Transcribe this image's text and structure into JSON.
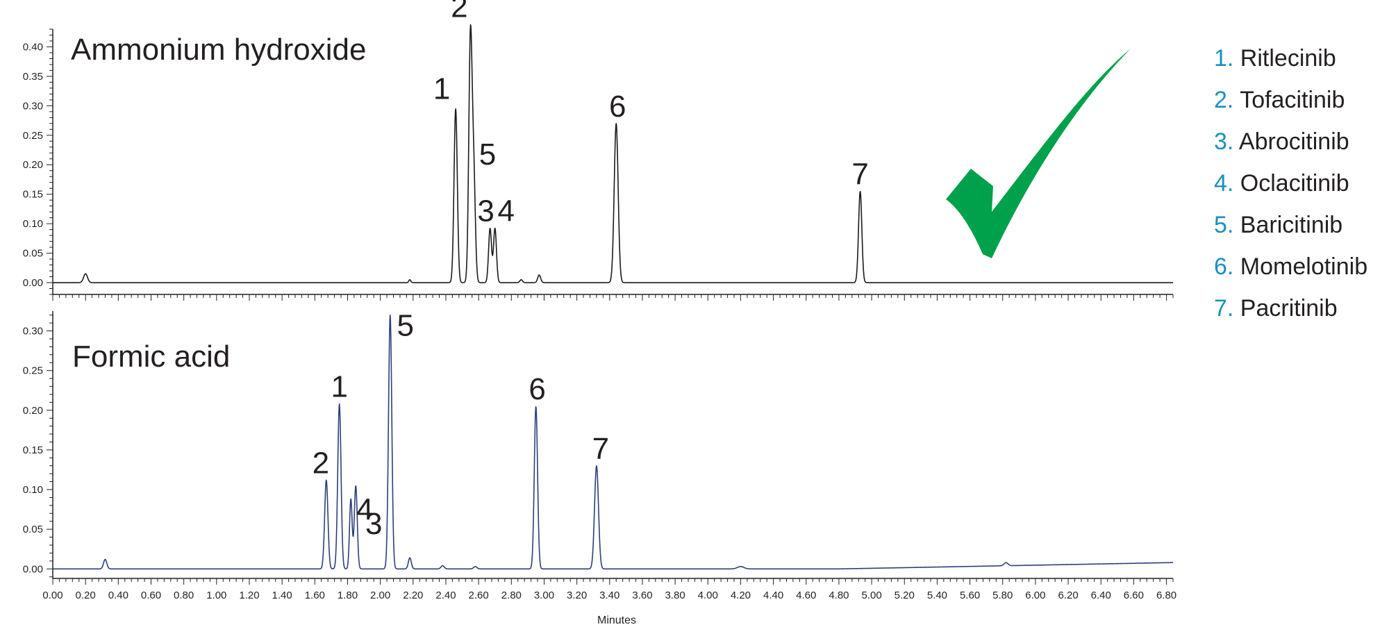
{
  "chart_data": [
    {
      "type": "line",
      "title": "Ammonium hydroxide",
      "xlabel": "",
      "ylabel": "",
      "xlim": [
        0.0,
        6.84
      ],
      "ylim": [
        -0.02,
        0.43
      ],
      "yticks": [
        0.0,
        0.05,
        0.1,
        0.15,
        0.2,
        0.25,
        0.3,
        0.35,
        0.4
      ],
      "ytick_labels": [
        "0.00",
        "0.05",
        "0.10",
        "0.15",
        "0.20",
        "0.25",
        "0.30",
        "0.35",
        "0.40"
      ],
      "color": "#1a1a1a",
      "baseline": 0.0,
      "peaks": [
        {
          "x": 0.2,
          "y": 0.015,
          "w": 0.012,
          "label": ""
        },
        {
          "x": 2.18,
          "y": 0.005,
          "w": 0.006,
          "label": ""
        },
        {
          "x": 2.46,
          "y": 0.295,
          "w": 0.01,
          "label": "1"
        },
        {
          "x": 2.55,
          "y": 0.41,
          "w": 0.01,
          "label": "2"
        },
        {
          "x": 2.57,
          "y": 0.18,
          "w": 0.01,
          "label": "5"
        },
        {
          "x": 2.67,
          "y": 0.092,
          "w": 0.009,
          "label": "3"
        },
        {
          "x": 2.7,
          "y": 0.092,
          "w": 0.009,
          "label": "4"
        },
        {
          "x": 2.86,
          "y": 0.005,
          "w": 0.008,
          "label": ""
        },
        {
          "x": 2.97,
          "y": 0.013,
          "w": 0.009,
          "label": ""
        },
        {
          "x": 3.44,
          "y": 0.27,
          "w": 0.012,
          "label": "6"
        },
        {
          "x": 4.93,
          "y": 0.155,
          "w": 0.01,
          "label": "7"
        }
      ]
    },
    {
      "type": "line",
      "title": "Formic acid",
      "xlabel": "Minutes",
      "ylabel": "",
      "xlim": [
        0.0,
        6.84
      ],
      "ylim": [
        -0.012,
        0.325
      ],
      "yticks": [
        0.0,
        0.05,
        0.1,
        0.15,
        0.2,
        0.25,
        0.3
      ],
      "ytick_labels": [
        "0.00",
        "0.05",
        "0.10",
        "0.15",
        "0.20",
        "0.25",
        "0.30"
      ],
      "xticks": [
        "0.00",
        "0.20",
        "0.40",
        "0.60",
        "0.80",
        "1.00",
        "1.20",
        "1.40",
        "1.60",
        "1.80",
        "2.00",
        "2.20",
        "2.40",
        "2.60",
        "2.80",
        "3.00",
        "3.20",
        "3.40",
        "3.60",
        "3.80",
        "4.00",
        "4.20",
        "4.40",
        "4.60",
        "4.80",
        "5.00",
        "5.20",
        "5.40",
        "5.60",
        "5.80",
        "6.00",
        "6.20",
        "6.40",
        "6.60",
        "6.80"
      ],
      "color": "#2b3f7a",
      "baseline": 0.0,
      "drift_end": 0.008,
      "peaks": [
        {
          "x": 0.32,
          "y": 0.012,
          "w": 0.01,
          "label": ""
        },
        {
          "x": 1.67,
          "y": 0.112,
          "w": 0.01,
          "label": "2"
        },
        {
          "x": 1.75,
          "y": 0.208,
          "w": 0.01,
          "label": "1"
        },
        {
          "x": 1.82,
          "y": 0.088,
          "w": 0.008,
          "label": "4"
        },
        {
          "x": 1.85,
          "y": 0.105,
          "w": 0.009,
          "label": "3"
        },
        {
          "x": 2.06,
          "y": 0.32,
          "w": 0.01,
          "label": "5"
        },
        {
          "x": 2.18,
          "y": 0.014,
          "w": 0.009,
          "label": ""
        },
        {
          "x": 2.38,
          "y": 0.004,
          "w": 0.01,
          "label": ""
        },
        {
          "x": 2.58,
          "y": 0.003,
          "w": 0.01,
          "label": ""
        },
        {
          "x": 2.95,
          "y": 0.205,
          "w": 0.01,
          "label": "6"
        },
        {
          "x": 3.32,
          "y": 0.13,
          "w": 0.012,
          "label": "7"
        },
        {
          "x": 4.2,
          "y": 0.003,
          "w": 0.02,
          "label": ""
        },
        {
          "x": 5.82,
          "y": 0.004,
          "w": 0.012,
          "label": ""
        }
      ]
    }
  ],
  "legend": [
    {
      "number": "1.",
      "name": "Ritlecinib"
    },
    {
      "number": "2.",
      "name": "Tofacitinib"
    },
    {
      "number": "3.",
      "name": "Abrocitinib"
    },
    {
      "number": "4.",
      "name": "Oclacitinib"
    },
    {
      "number": "5.",
      "name": "Baricitinib"
    },
    {
      "number": "6.",
      "name": "Momelotinib"
    },
    {
      "number": "7.",
      "name": "Pacritinib"
    }
  ],
  "checkmark_color": "#00a14b",
  "checkmark_icon": "checkmark-icon"
}
